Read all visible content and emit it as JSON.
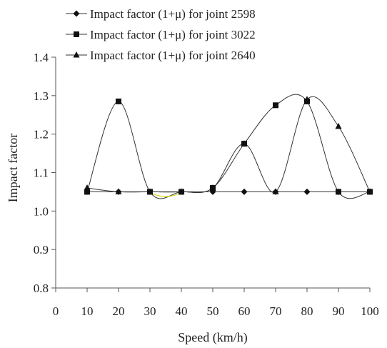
{
  "chart_data": {
    "type": "line",
    "title": "",
    "xlabel": "Speed (km/h)",
    "ylabel": "Impact factor",
    "xlim": [
      0,
      100
    ],
    "ylim": [
      0.8,
      1.4
    ],
    "xticks": [
      0,
      10,
      20,
      30,
      40,
      50,
      60,
      70,
      80,
      90,
      100
    ],
    "yticks": [
      0.8,
      0.9,
      1.0,
      1.1,
      1.2,
      1.3,
      1.4
    ],
    "xtick_labels": [
      "0",
      "10",
      "20",
      "30",
      "40",
      "50",
      "60",
      "70",
      "80",
      "90",
      "100"
    ],
    "ytick_labels": [
      "0.8",
      "0.9",
      "1.0",
      "1.1",
      "1.2",
      "1.3",
      "1.4"
    ],
    "grid": false,
    "legend_position": "top",
    "x": [
      10,
      20,
      30,
      40,
      50,
      60,
      70,
      80,
      90,
      100
    ],
    "series": [
      {
        "name": "Impact factor (1+μ) for joint 2598",
        "marker": "diamond",
        "smooth": false,
        "values": [
          1.05,
          1.05,
          1.05,
          1.05,
          1.05,
          1.05,
          1.05,
          1.05,
          1.05,
          1.05
        ]
      },
      {
        "name": "Impact factor (1+μ) for joint 3022",
        "marker": "square",
        "smooth": true,
        "values": [
          1.05,
          1.285,
          1.05,
          1.05,
          1.06,
          1.175,
          1.275,
          1.285,
          1.05,
          1.05
        ]
      },
      {
        "name": "Impact factor (1+μ) for joint 2640",
        "marker": "triangle",
        "smooth": true,
        "values": [
          1.06,
          1.05,
          1.05,
          1.05,
          1.06,
          1.175,
          1.05,
          1.29,
          1.22,
          1.05
        ]
      }
    ],
    "colors": {
      "line": "#333333",
      "marker": "#111111",
      "axis": "#555555",
      "segment_highlight": "#d8d000"
    }
  }
}
